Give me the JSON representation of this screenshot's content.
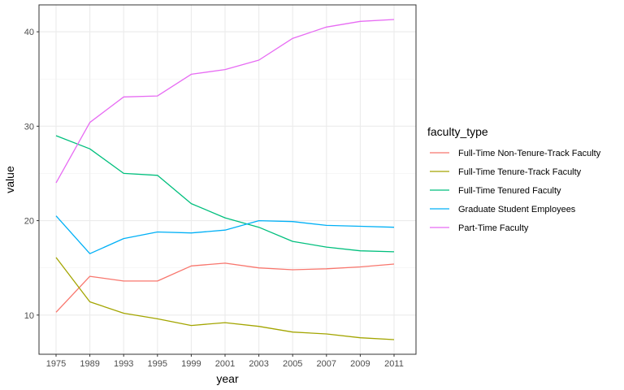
{
  "chart_data": {
    "type": "line",
    "xlabel": "year",
    "ylabel": "value",
    "x": [
      "1975",
      "1989",
      "1993",
      "1995",
      "1999",
      "2001",
      "2003",
      "2005",
      "2007",
      "2009",
      "2011"
    ],
    "ylim": [
      7.4,
      41.3
    ],
    "yticks": [
      10,
      20,
      30,
      40
    ],
    "grid": true,
    "legend": {
      "title": "faculty_type",
      "position": "right"
    },
    "series": [
      {
        "name": "Full-Time Non-Tenure-Track Faculty",
        "color": "#F8766D",
        "values": [
          10.3,
          14.1,
          13.6,
          13.6,
          15.2,
          15.5,
          15.0,
          14.8,
          14.9,
          15.1,
          15.4
        ]
      },
      {
        "name": "Full-Time Tenure-Track Faculty",
        "color": "#A3A500",
        "values": [
          16.1,
          11.4,
          10.2,
          9.6,
          8.9,
          9.2,
          8.8,
          8.2,
          8.0,
          7.6,
          7.4
        ]
      },
      {
        "name": "Full-Time Tenured Faculty",
        "color": "#00BF7D",
        "values": [
          29.0,
          27.6,
          25.0,
          24.8,
          21.8,
          20.3,
          19.3,
          17.8,
          17.2,
          16.8,
          16.7
        ]
      },
      {
        "name": "Graduate Student Employees",
        "color": "#00B0F6",
        "values": [
          20.5,
          16.5,
          18.1,
          18.8,
          18.7,
          19.0,
          20.0,
          19.9,
          19.5,
          19.4,
          19.3
        ]
      },
      {
        "name": "Part-Time Faculty",
        "color": "#E76BF3",
        "values": [
          24.0,
          30.4,
          33.1,
          33.2,
          35.5,
          36.0,
          37.0,
          39.3,
          40.5,
          41.1,
          41.3
        ]
      }
    ]
  }
}
